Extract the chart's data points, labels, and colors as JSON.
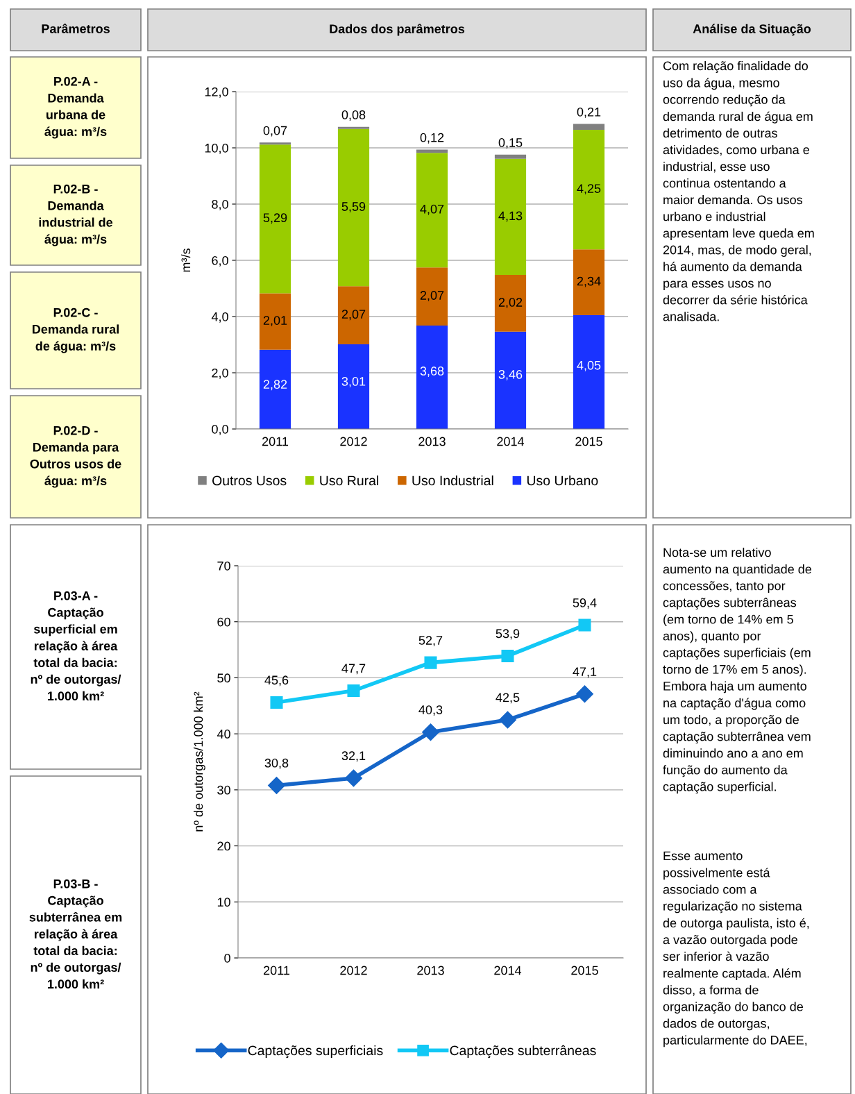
{
  "chart_data": [
    {
      "type": "other",
      "annotations": [
        "Parâmetros",
        "Dados dos parâmetros",
        "Análise da Situação"
      ]
    },
    {
      "type": "bar",
      "stacked": true,
      "categories": [
        "2011",
        "2012",
        "2013",
        "2014",
        "2015"
      ],
      "ylabel": "m³/s",
      "ylim": [
        0,
        12
      ],
      "yticks": [
        {
          "value": 0,
          "label": "0,0"
        },
        {
          "value": 2,
          "label": "2,0"
        },
        {
          "value": 4,
          "label": "4,0"
        },
        {
          "value": 6,
          "label": "6,0"
        },
        {
          "value": 8,
          "label": "8,0"
        },
        {
          "value": 10,
          "label": "10,0"
        },
        {
          "value": 12,
          "label": "12,0"
        }
      ],
      "grid": "y",
      "legend": "bottom",
      "series": [
        {
          "name": "Uso Urbano",
          "color": "#1a33ff",
          "values": [
            2.82,
            3.01,
            3.68,
            3.46,
            4.05
          ],
          "value_labels": [
            "2,82",
            "3,01",
            "3,68",
            "3,46",
            "4,05"
          ]
        },
        {
          "name": "Uso Industrial",
          "color": "#cc6600",
          "values": [
            2.01,
            2.07,
            2.07,
            2.02,
            2.34
          ],
          "value_labels": [
            "2,01",
            "2,07",
            "2,07",
            "2,02",
            "2,34"
          ]
        },
        {
          "name": "Uso Rural",
          "color": "#99cc00",
          "values": [
            5.29,
            5.59,
            4.07,
            4.13,
            4.25
          ],
          "value_labels": [
            "5,29",
            "5,59",
            "4,07",
            "4,13",
            "4,25"
          ]
        },
        {
          "name": "Outros Usos",
          "color": "#808080",
          "values": [
            0.07,
            0.08,
            0.12,
            0.15,
            0.21
          ],
          "value_labels": [
            "0,07",
            "0,08",
            "0,12",
            "0,15",
            "0,21"
          ]
        }
      ],
      "annotations": [
        "P.02-A -\nDemanda\nurbana de\nágua: m³/s",
        "P.02-B -\nDemanda\nindustrial de\nágua: m³/s",
        "P.02-C -\nDemanda rural\nde água: m³/s",
        "P.02-D -\nDemanda para\nOutros usos de\nágua: m³/s",
        "Com relação finalidade do\nuso da água, mesmo\nocorrendo redução da\ndemanda rural de água em\ndetrimento de outras\natividades, como urbana e\nindustrial, esse uso\ncontinua ostentando a\nmaior demanda. Os usos\nurbano e industrial\napresentam leve queda em\n2014, mas, de modo geral,\nhá aumento da demanda\npara esses usos no\ndecorrer da série histórica\nanalisada."
      ]
    },
    {
      "type": "line",
      "categories": [
        "2011",
        "2012",
        "2013",
        "2014",
        "2015"
      ],
      "ylabel": "nº de outorgas/1.000 km²",
      "ylim": [
        0,
        70
      ],
      "yticks": [
        0,
        10,
        20,
        30,
        40,
        50,
        60,
        70
      ],
      "grid": "y",
      "legend": "bottom",
      "line_style": "solid",
      "series": [
        {
          "name": "Captações superficiais",
          "color": "#1565c8",
          "marker": "diamond",
          "values": [
            30.8,
            32.1,
            40.3,
            42.5,
            47.1
          ],
          "value_labels": [
            "30,8",
            "32,1",
            "40,3",
            "42,5",
            "47,1"
          ]
        },
        {
          "name": "Captações subterrâneas",
          "color": "#12c8f5",
          "marker": "square",
          "values": [
            45.6,
            47.7,
            52.7,
            53.9,
            59.4
          ],
          "value_labels": [
            "45,6",
            "47,7",
            "52,7",
            "53,9",
            "59,4"
          ]
        }
      ],
      "annotations": [
        "P.03-A -\nCaptação\nsuperficial em\nrelação à área\ntotal da bacia:\nnº de outorgas/\n1.000 km²",
        "P.03-B -\nCaptação\nsubterrânea em\nrelação à área\ntotal da bacia:\nnº de outorgas/\n1.000 km²",
        "Nota-se um relativo\naumento na quantidade de\nconcessões, tanto por\ncaptações subterrâneas\n(em torno de 14% em 5\nanos), quanto por\ncaptações superficiais (em\ntorno de 17% em 5 anos).\nEmbora haja um aumento\nna captação d'água como\num todo, a proporção de\ncaptação subterrânea vem\ndiminuindo ano a ano em\nfunção do aumento da\ncaptação superficial.",
        "Esse aumento\npossivelmente está\nassociado com a\nregularização no sistema\nde outorga paulista, isto é,\na vazão outorgada pode\nser inferior à vazão\nrealmente captada. Além\ndisso, a forma de\norganização do banco de\ndados de outorgas,\nparticularmente do DAEE,"
      ]
    }
  ]
}
